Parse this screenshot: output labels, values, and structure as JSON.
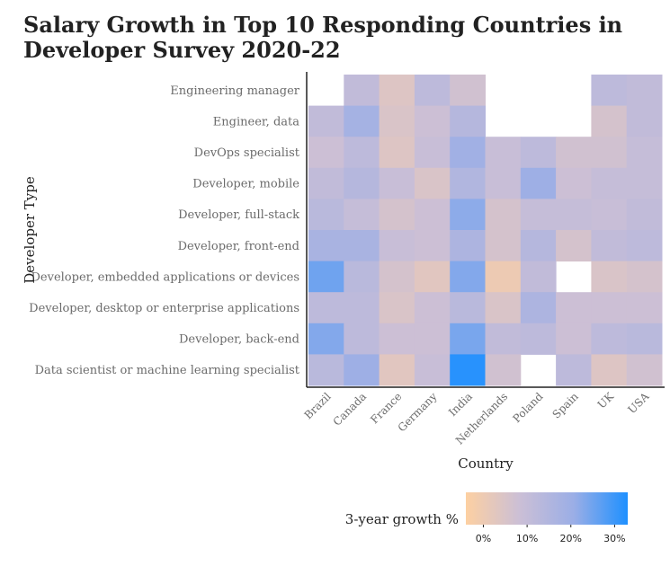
{
  "chart_data": {
    "type": "heatmap",
    "title": "Salary Growth in Top 10 Responding Countries in Developer Survey 2020-22",
    "xlabel": "Country",
    "ylabel": "Developer Type",
    "x": [
      "Brazil",
      "Canada",
      "France",
      "Germany",
      "India",
      "Netherlands",
      "Poland",
      "Spain",
      "UK",
      "USA"
    ],
    "y": [
      "Engineering manager",
      "Engineer, data",
      "DevOps specialist",
      "Developer, mobile",
      "Developer, full-stack",
      "Developer, front-end",
      "Developer, embedded applications or devices",
      "Developer, desktop or enterprise applications",
      "Developer, back-end",
      "Data scientist or machine learning specialist"
    ],
    "values": [
      [
        null,
        11,
        4,
        12,
        7,
        null,
        null,
        null,
        12,
        11
      ],
      [
        11,
        18,
        5,
        8,
        14,
        null,
        null,
        null,
        6,
        11
      ],
      [
        8,
        12,
        4,
        9,
        19,
        9,
        12,
        7,
        7,
        10
      ],
      [
        11,
        14,
        9,
        5,
        15,
        9,
        20,
        8,
        10,
        10
      ],
      [
        13,
        10,
        6,
        8,
        22,
        6,
        10,
        10,
        9,
        11
      ],
      [
        17,
        17,
        9,
        8,
        16,
        6,
        14,
        6,
        11,
        12
      ],
      [
        25,
        13,
        6,
        3,
        23,
        0,
        11,
        null,
        5,
        6
      ],
      [
        12,
        12,
        5,
        8,
        13,
        5,
        16,
        8,
        8,
        8
      ],
      [
        23,
        12,
        8,
        8,
        24,
        11,
        12,
        8,
        12,
        13
      ],
      [
        13,
        20,
        3,
        9,
        32,
        7,
        null,
        12,
        4,
        7
      ]
    ],
    "value_range": [
      -4,
      33
    ],
    "legend": {
      "title": "3-year growth %",
      "ticks": [
        "0%",
        "10%",
        "20%",
        "30%"
      ],
      "tick_values": [
        0,
        10,
        20,
        30
      ],
      "colors": [
        "#fdd0a2",
        "#cbbfd6",
        "#9baee6",
        "#1e90ff"
      ],
      "placement": "bottom"
    },
    "grid": false
  }
}
